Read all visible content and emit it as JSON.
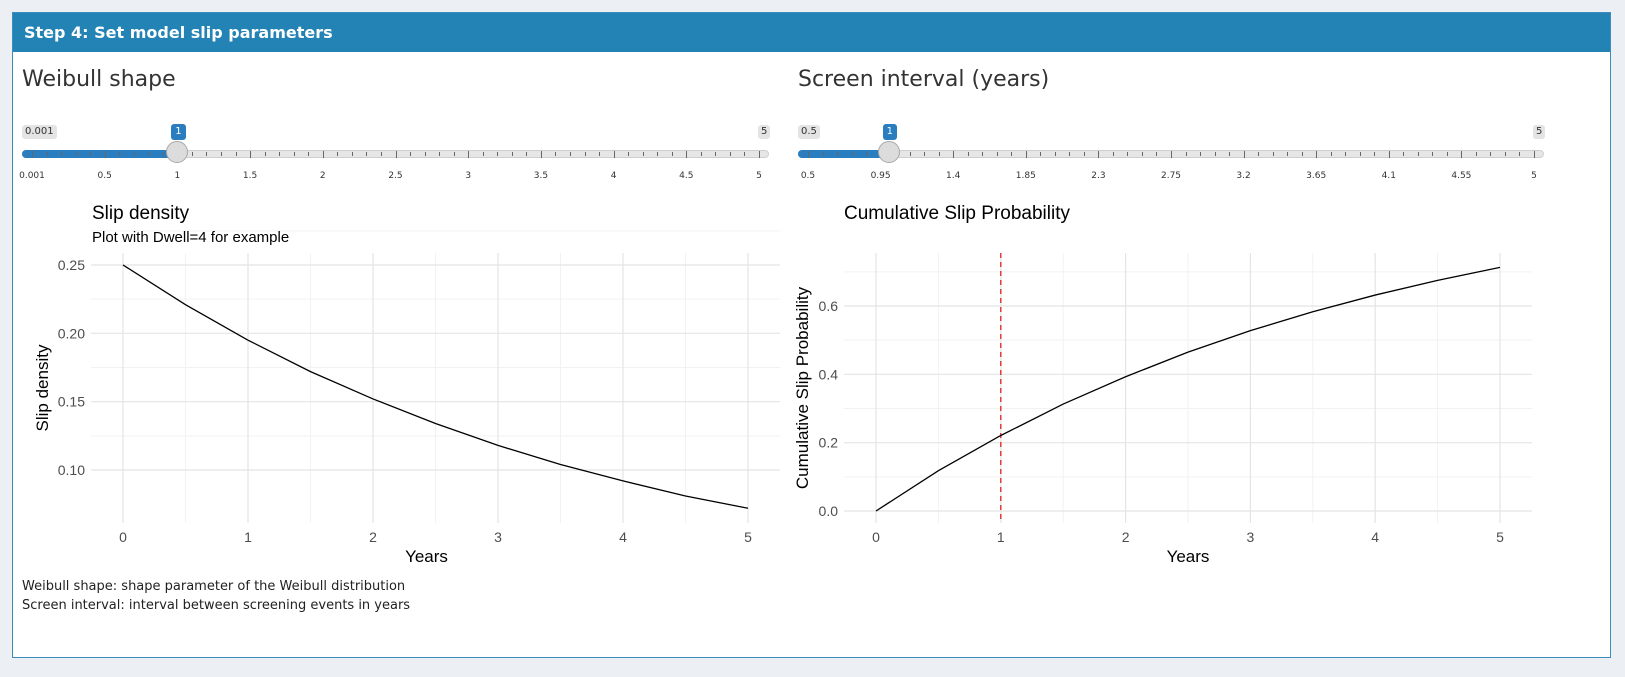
{
  "panel": {
    "header": "Step 4: Set model slip parameters",
    "accent_color": "#2283b4"
  },
  "sliders": {
    "weibull": {
      "label": "Weibull shape",
      "min_label": "0.001",
      "max_label": "5",
      "value_label": "1",
      "min": 0.001,
      "max": 5,
      "value": 1,
      "ticks": [
        "0.001",
        "0.5",
        "1",
        "1.5",
        "2",
        "2.5",
        "3",
        "3.5",
        "4",
        "4.5",
        "5"
      ]
    },
    "interval": {
      "label": "Screen interval (years)",
      "min_label": "0.5",
      "max_label": "5",
      "value_label": "1",
      "min": 0.5,
      "max": 5,
      "value": 1,
      "ticks": [
        "0.5",
        "0.95",
        "1.4",
        "1.85",
        "2.3",
        "2.75",
        "3.2",
        "3.65",
        "4.1",
        "4.55",
        "5"
      ]
    }
  },
  "chart_data": [
    {
      "type": "line",
      "title": "Slip density",
      "subtitle": "Plot with Dwell=4 for example",
      "xlabel": "Years",
      "ylabel": "Slip density",
      "xlim": [
        0,
        5
      ],
      "ylim": [
        0.07,
        0.25
      ],
      "x_ticks": [
        "0",
        "1",
        "2",
        "3",
        "4",
        "5"
      ],
      "y_ticks": [
        "0.10",
        "0.15",
        "0.20",
        "0.25"
      ],
      "grid": true,
      "x": [
        0,
        0.5,
        1,
        1.5,
        2,
        2.5,
        3,
        3.5,
        4,
        4.5,
        5
      ],
      "y": [
        0.25,
        0.221,
        0.195,
        0.172,
        0.152,
        0.134,
        0.118,
        0.104,
        0.092,
        0.081,
        0.072
      ],
      "line_color": "#000000"
    },
    {
      "type": "line",
      "title": "Cumulative Slip Probability",
      "xlabel": "Years",
      "ylabel": "Cumulative Slip Probability",
      "xlim": [
        0,
        5
      ],
      "ylim": [
        0,
        0.72
      ],
      "x_ticks": [
        "0",
        "1",
        "2",
        "3",
        "4",
        "5"
      ],
      "y_ticks": [
        "0.0",
        "0.2",
        "0.4",
        "0.6"
      ],
      "grid": true,
      "x": [
        0,
        0.5,
        1,
        1.5,
        2,
        2.5,
        3,
        3.5,
        4,
        4.5,
        5
      ],
      "y": [
        0,
        0.118,
        0.221,
        0.313,
        0.393,
        0.465,
        0.528,
        0.583,
        0.632,
        0.675,
        0.713
      ],
      "vline": 1,
      "vline_color": "#e02020",
      "line_color": "#000000"
    }
  ],
  "footnotes": [
    "Weibull shape: shape parameter of the Weibull distribution",
    "Screen interval: interval between screening events in years"
  ]
}
